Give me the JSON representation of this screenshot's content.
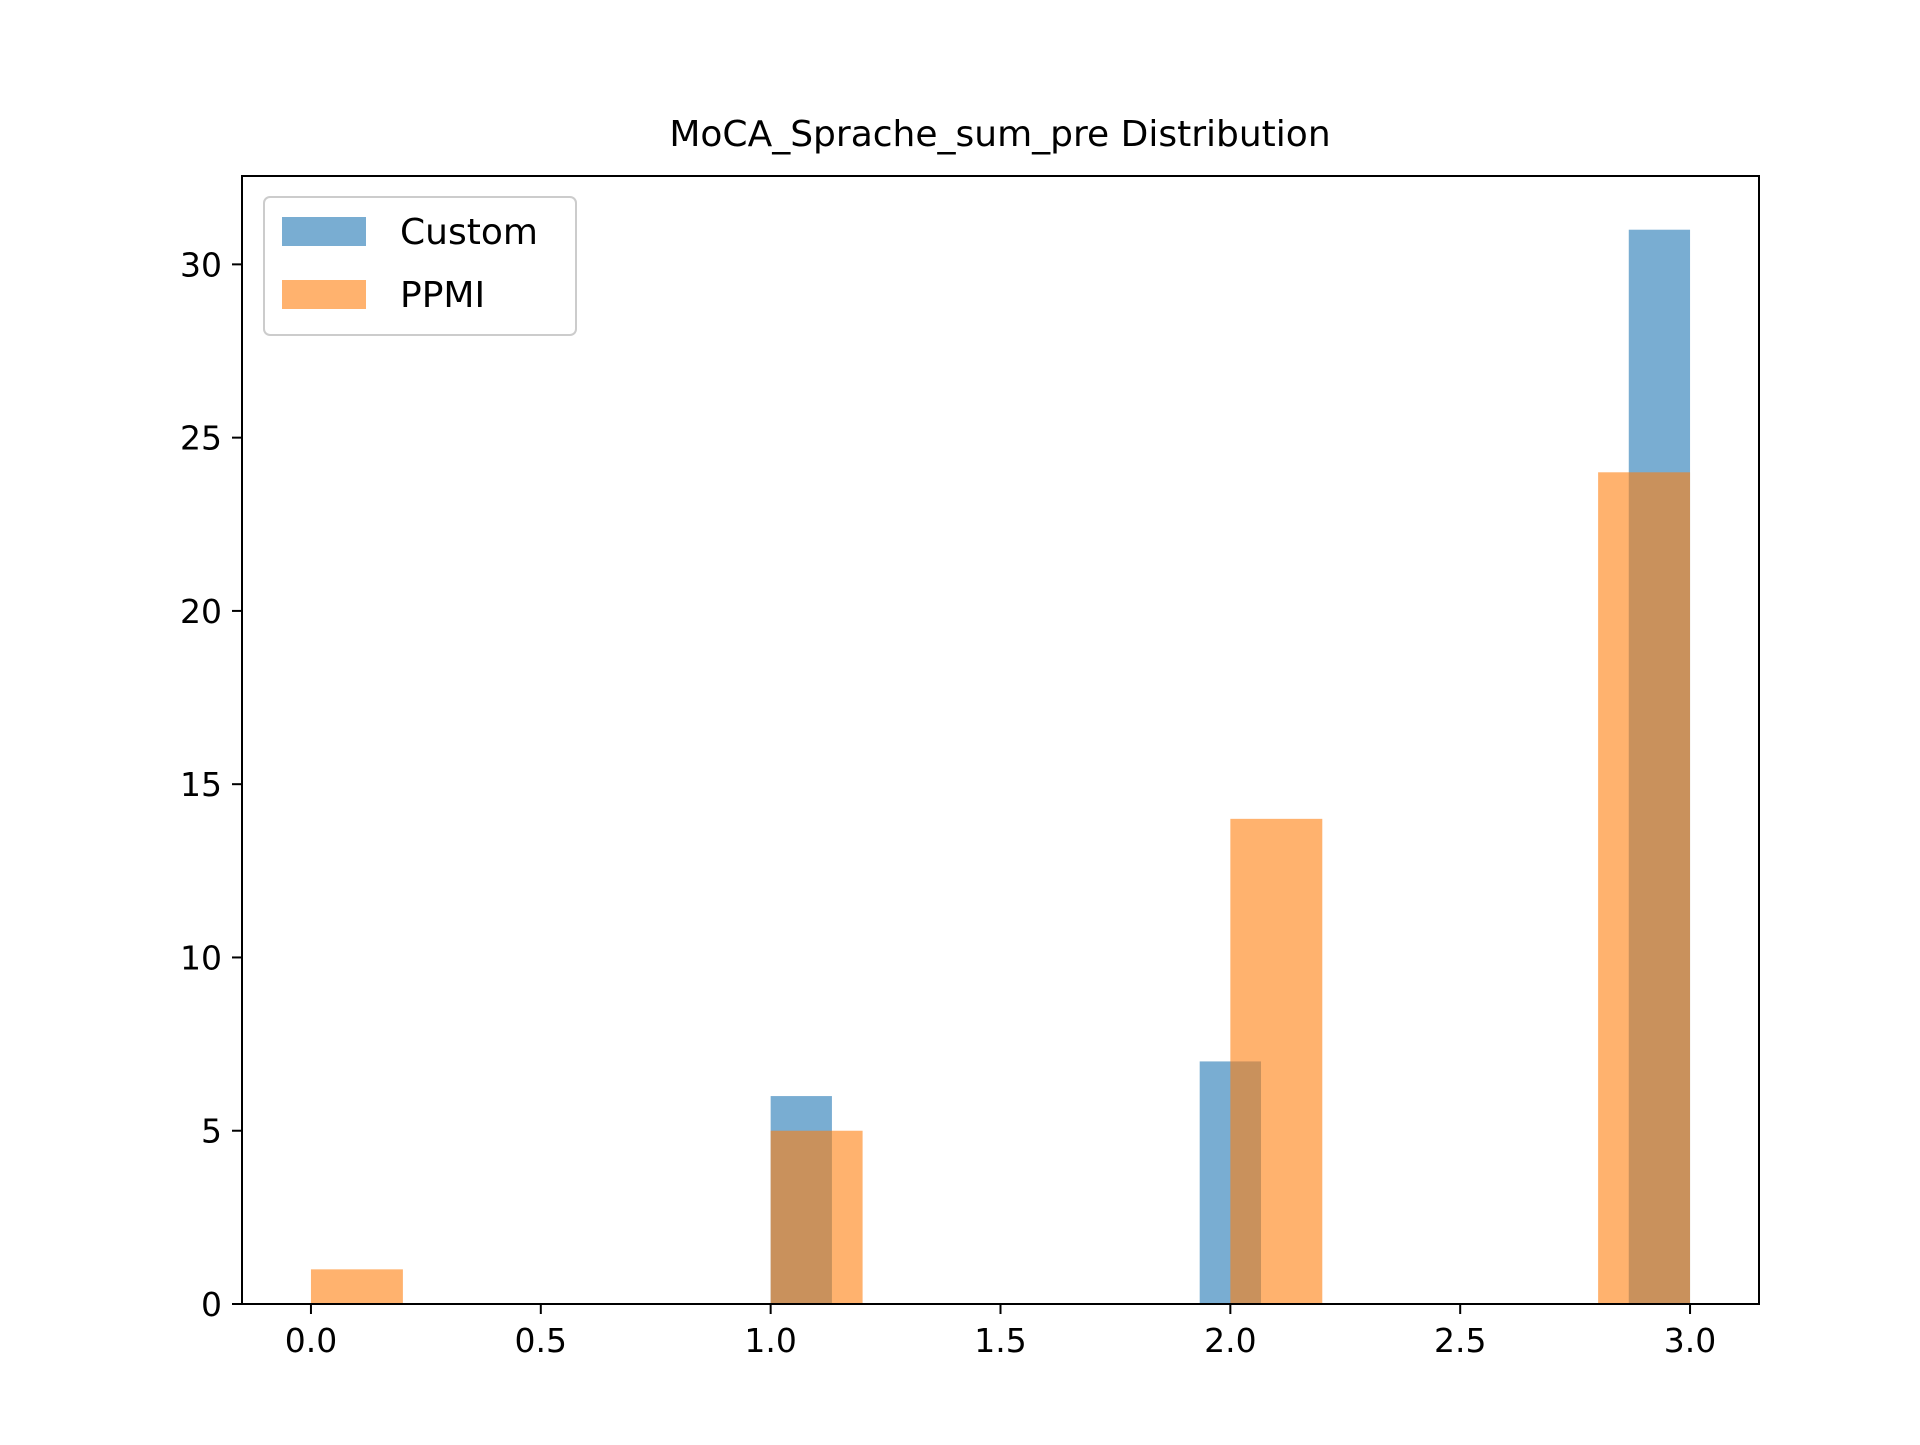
{
  "chart_data": {
    "type": "bar",
    "title": "MoCA_Sprache_sum_pre Distribution",
    "xlabel": "",
    "ylabel": "",
    "xlim": [
      -0.15,
      3.15
    ],
    "ylim": [
      0,
      32.55
    ],
    "xticks": [
      0.0,
      0.5,
      1.0,
      1.5,
      2.0,
      2.5,
      3.0
    ],
    "xtick_labels": [
      "0.0",
      "0.5",
      "1.0",
      "1.5",
      "2.0",
      "2.5",
      "3.0"
    ],
    "yticks": [
      0,
      5,
      10,
      15,
      20,
      25,
      30
    ],
    "ytick_labels": [
      "0",
      "5",
      "10",
      "15",
      "20",
      "25",
      "30"
    ],
    "grid": false,
    "legend_position": "upper-left",
    "series": [
      {
        "name": "Custom",
        "color": "#1f77b4",
        "opacity": 0.6,
        "bins": [
          {
            "x0": 1.0,
            "x1": 1.1333,
            "count": 6
          },
          {
            "x0": 1.9333,
            "x1": 2.0667,
            "count": 7
          },
          {
            "x0": 2.8667,
            "x1": 3.0,
            "count": 31
          }
        ]
      },
      {
        "name": "PPMI",
        "color": "#ff7f0e",
        "opacity": 0.6,
        "bins": [
          {
            "x0": 0.0,
            "x1": 0.2,
            "count": 1
          },
          {
            "x0": 1.0,
            "x1": 1.2,
            "count": 5
          },
          {
            "x0": 2.0,
            "x1": 2.2,
            "count": 14
          },
          {
            "x0": 2.8,
            "x1": 3.0,
            "count": 24
          }
        ]
      }
    ]
  }
}
